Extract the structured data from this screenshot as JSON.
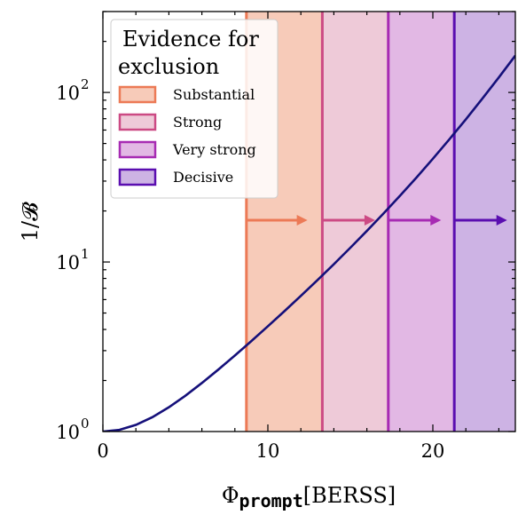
{
  "chart_data": {
    "type": "line",
    "xlabel_main": "Φ",
    "xlabel_sub": "prompt",
    "xlabel_unit": "[BERSS]",
    "ylabel": "1/𝓑",
    "xlim": [
      0,
      25
    ],
    "ylim": [
      1,
      300
    ],
    "yscale": "log",
    "grid": false,
    "legend_placement": "top-left",
    "x_ticks": [
      {
        "value": 0,
        "label": "0"
      },
      {
        "value": 10,
        "label": "10"
      },
      {
        "value": 20,
        "label": "20"
      }
    ],
    "y_ticks": [
      {
        "value": 1,
        "base": "10",
        "exp": "0"
      },
      {
        "value": 10,
        "base": "10",
        "exp": "1"
      },
      {
        "value": 100,
        "base": "10",
        "exp": "2"
      }
    ],
    "reference_line": {
      "y": 1,
      "style": "dotted"
    },
    "curve": {
      "color": "#15107a",
      "x": [
        0,
        1,
        2,
        3,
        4,
        5,
        6,
        7,
        8,
        9,
        10,
        11,
        12,
        13,
        14,
        15,
        16,
        17,
        18,
        19,
        20,
        21,
        22,
        23,
        24,
        25
      ],
      "y": [
        1.0,
        1.023,
        1.094,
        1.215,
        1.391,
        1.627,
        1.933,
        2.321,
        2.808,
        3.417,
        4.177,
        5.125,
        6.313,
        7.811,
        9.708,
        12.135,
        15.25,
        19.28,
        24.53,
        31.43,
        40.62,
        52.9,
        69.4,
        91.9,
        122.6,
        165.0
      ]
    },
    "legend_title_lines": [
      "Evidence for",
      "exclusion"
    ],
    "regions": [
      {
        "name": "Substantial",
        "x_start": 8.7,
        "x_end": 13.3,
        "fill": "#f7cbb9",
        "line": "#ec7a56",
        "arrow_end": 12.4
      },
      {
        "name": "Strong",
        "x_start": 13.3,
        "x_end": 17.3,
        "fill": "#eecad8",
        "line": "#cc4a84",
        "arrow_end": 16.5
      },
      {
        "name": "Very strong",
        "x_start": 17.3,
        "x_end": 21.3,
        "fill": "#e2b8e4",
        "line": "#a72bb3",
        "arrow_end": 20.5
      },
      {
        "name": "Decisive",
        "x_start": 21.3,
        "x_end": 25,
        "fill": "#cdb3e4",
        "line": "#5a0eb0",
        "arrow_end": 24.5
      }
    ]
  }
}
